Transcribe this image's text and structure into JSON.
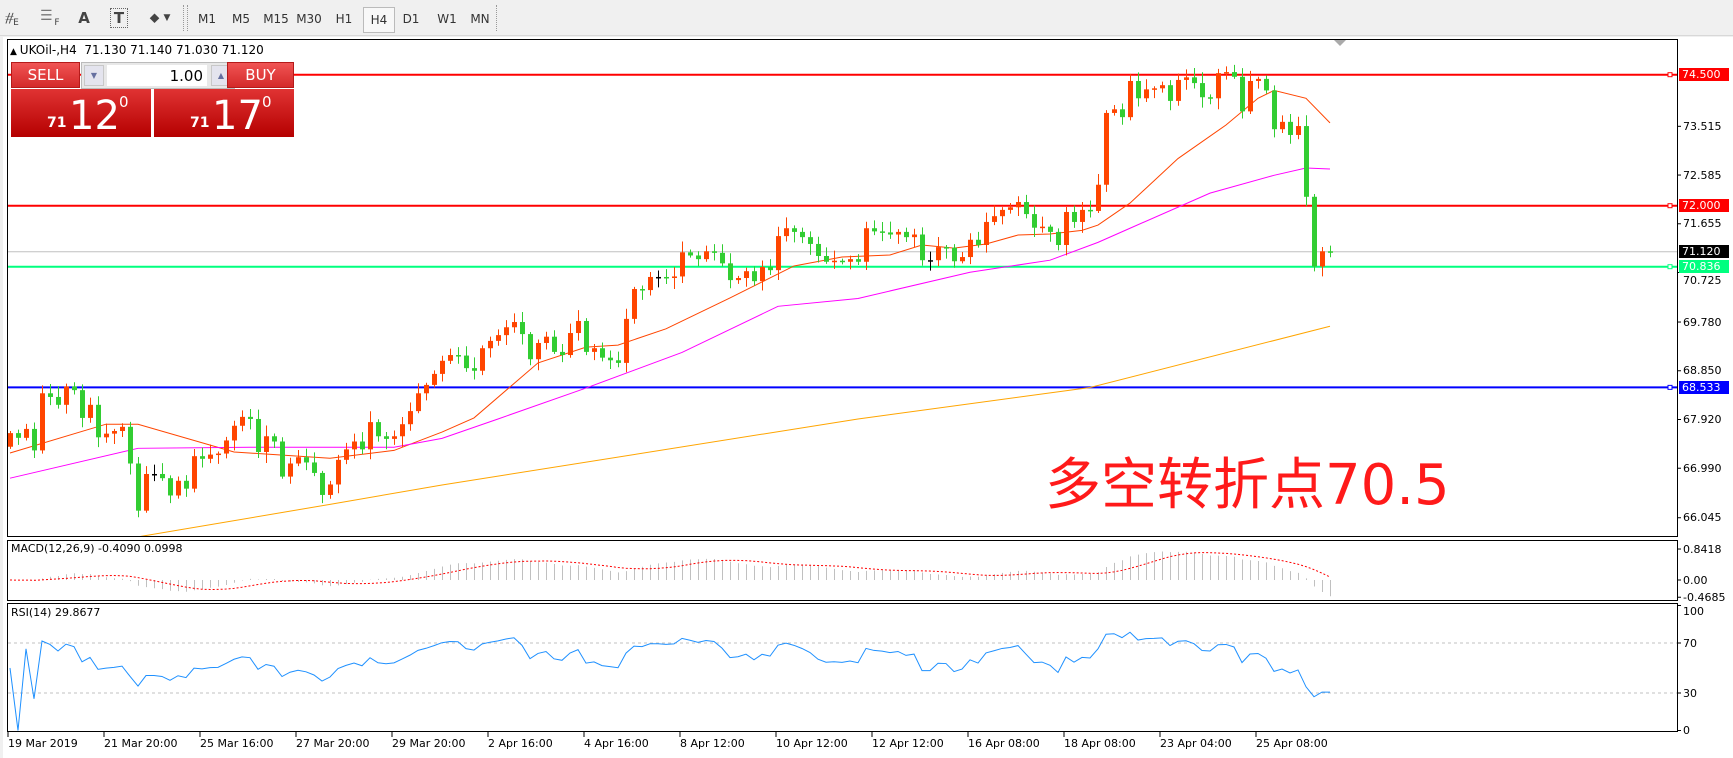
{
  "toolbar": {
    "tools": [
      {
        "icon": "elliott-wave-icon",
        "label": "E"
      },
      {
        "icon": "fibonacci-lines-icon",
        "label": "F"
      },
      {
        "icon": "text-icon",
        "label": "A"
      },
      {
        "icon": "text-label-icon",
        "label": "T"
      },
      {
        "icon": "arrows-icon",
        "label": ""
      }
    ],
    "timeframes": [
      "M1",
      "M5",
      "M15",
      "M30",
      "H1",
      "H4",
      "D1",
      "W1",
      "MN"
    ],
    "active_timeframe": "H4"
  },
  "chart": {
    "symbol": "UKOil-,H4",
    "ohlc": "71.130 71.140 71.030 71.120"
  },
  "trade_panel": {
    "sell_label": "SELL",
    "buy_label": "BUY",
    "volume": "1.00",
    "sell_price": {
      "prefix": "71",
      "big": "12",
      "sup": "0"
    },
    "buy_price": {
      "prefix": "71",
      "big": "17",
      "sup": "0"
    }
  },
  "annotation": "多空转折点70.5",
  "chart_data": [
    {
      "type": "candlestick",
      "symbol": "UKOil-",
      "timeframe": "H4",
      "colors": {
        "up": "#ff4500",
        "down": "#32cd32",
        "doji": "#000000"
      },
      "open_first": 67.4,
      "close": [
        67.66,
        67.57,
        67.74,
        67.33,
        68.42,
        68.35,
        68.2,
        68.55,
        68.48,
        67.95,
        68.2,
        67.58,
        67.65,
        67.7,
        67.78,
        67.08,
        66.18,
        66.88,
        66.88,
        66.8,
        66.47,
        66.75,
        66.6,
        67.22,
        67.17,
        67.25,
        67.27,
        67.52,
        67.8,
        67.97,
        67.93,
        67.3,
        67.6,
        67.5,
        66.83,
        67.08,
        67.2,
        67.1,
        66.9,
        66.48,
        66.68,
        67.15,
        67.35,
        67.5,
        67.35,
        67.87,
        67.6,
        67.55,
        67.6,
        67.83,
        68.08,
        68.42,
        68.58,
        68.79,
        69.04,
        69.15,
        69.14,
        68.9,
        68.85,
        69.28,
        69.42,
        69.53,
        69.68,
        69.78,
        69.55,
        69.07,
        69.38,
        69.5,
        69.21,
        69.15,
        69.57,
        69.8,
        69.21,
        69.28,
        69.1,
        69.05,
        69.0,
        69.84,
        70.41,
        70.39,
        70.64,
        70.64,
        70.62,
        70.65,
        71.11,
        71.05,
        70.98,
        71.13,
        71.1,
        70.9,
        70.58,
        70.62,
        70.75,
        70.56,
        70.83,
        70.77,
        71.42,
        71.57,
        71.5,
        71.4,
        71.27,
        71.04,
        70.93,
        70.95,
        70.93,
        70.98,
        70.93,
        71.57,
        71.51,
        71.49,
        71.45,
        71.5,
        71.4,
        71.45,
        70.96,
        70.96,
        71.21,
        71.2,
        70.94,
        71.02,
        71.35,
        71.25,
        71.69,
        71.8,
        71.92,
        71.97,
        72.07,
        71.84,
        71.58,
        71.6,
        71.5,
        71.25,
        71.88,
        71.69,
        71.92,
        71.9,
        72.4,
        73.77,
        73.84,
        73.69,
        74.38,
        74.05,
        74.22,
        74.24,
        74.3,
        74.0,
        74.4,
        74.45,
        74.34,
        74.07,
        74.05,
        74.53,
        74.55,
        74.46,
        73.8,
        74.38,
        74.42,
        74.2,
        73.46,
        73.6,
        73.35,
        73.52,
        72.17,
        70.84,
        71.13,
        71.12
      ],
      "y_ticks": [
        "73.515",
        "72.585",
        "71.655",
        "70.725",
        "69.780",
        "68.850",
        "67.920",
        "66.990",
        "66.045"
      ],
      "x_tick_labels": [
        "19 Mar 2019",
        "21 Mar 20:00",
        "25 Mar 16:00",
        "27 Mar 20:00",
        "29 Mar 20:00",
        "2 Apr 16:00",
        "4 Apr 16:00",
        "8 Apr 12:00",
        "10 Apr 12:00",
        "12 Apr 12:00",
        "16 Apr 08:00",
        "18 Apr 08:00",
        "23 Apr 04:00",
        "25 Apr 08:00"
      ],
      "horizontal_lines": [
        {
          "value": 74.5,
          "label": "74.500",
          "color": "#ff0000",
          "text_color": "#ffffff"
        },
        {
          "value": 72.0,
          "label": "72.000",
          "color": "#ff0000",
          "text_color": "#ffffff"
        },
        {
          "value": 70.836,
          "label": "70.836",
          "color": "#00ff7f",
          "text_color": "#ffffff"
        },
        {
          "value": 68.533,
          "label": "68.533",
          "color": "#0000ff",
          "text_color": "#ffffff"
        }
      ],
      "current_price": {
        "value": 71.12,
        "label": "71.120",
        "color": "#c0c0c0",
        "label_bg": "#000000"
      },
      "moving_averages": [
        {
          "color": "#ff4500",
          "points": [
            [
              0,
              67.28
            ],
            [
              12,
              67.83
            ],
            [
              16,
              67.83
            ],
            [
              28,
              67.3
            ],
            [
              40,
              67.18
            ],
            [
              48,
              67.33
            ],
            [
              54,
              67.68
            ],
            [
              58,
              67.95
            ],
            [
              66,
              69.0
            ],
            [
              72,
              69.3
            ],
            [
              76,
              69.34
            ],
            [
              82,
              69.65
            ],
            [
              90,
              70.24
            ],
            [
              98,
              70.85
            ],
            [
              104,
              71.02
            ],
            [
              110,
              71.06
            ],
            [
              114,
              71.25
            ],
            [
              118,
              71.19
            ],
            [
              122,
              71.27
            ],
            [
              126,
              71.44
            ],
            [
              130,
              71.46
            ],
            [
              134,
              71.53
            ],
            [
              136,
              71.63
            ],
            [
              140,
              72.05
            ],
            [
              146,
              72.9
            ],
            [
              152,
              73.54
            ],
            [
              156,
              74.05
            ],
            [
              158,
              74.2
            ],
            [
              162,
              74.05
            ],
            [
              165,
              73.58
            ]
          ]
        },
        {
          "color": "#ff00ff",
          "points": [
            [
              0,
              66.8
            ],
            [
              16,
              67.37
            ],
            [
              30,
              67.39
            ],
            [
              48,
              67.39
            ],
            [
              54,
              67.56
            ],
            [
              61,
              67.93
            ],
            [
              72,
              68.52
            ],
            [
              84,
              69.2
            ],
            [
              96,
              70.08
            ],
            [
              106,
              70.23
            ],
            [
              120,
              70.73
            ],
            [
              130,
              70.96
            ],
            [
              136,
              71.3
            ],
            [
              140,
              71.57
            ],
            [
              150,
              72.24
            ],
            [
              158,
              72.58
            ],
            [
              162,
              72.72
            ],
            [
              165,
              72.7
            ]
          ]
        },
        {
          "color": "#ffa500",
          "points": [
            [
              16,
              65.68
            ],
            [
              40,
              66.3
            ],
            [
              54,
              66.67
            ],
            [
              106,
              67.93
            ],
            [
              135,
              68.53
            ],
            [
              165,
              69.7
            ]
          ]
        }
      ]
    },
    {
      "type": "bar",
      "title": "MACD(12,26,9) -0.4090 0.0998",
      "y_ticks": [
        "0.8418",
        "0.00",
        "-0.4685"
      ],
      "colors": {
        "histogram": "#c0c0c0",
        "signal": "#ff0000"
      }
    },
    {
      "type": "line",
      "title": "RSI(14) 29.8677",
      "y_ticks": [
        "100",
        "70",
        "30",
        "0"
      ],
      "levels": [
        70,
        30
      ],
      "ylim": [
        0,
        100
      ],
      "colors": {
        "line": "#1e90ff"
      }
    }
  ]
}
